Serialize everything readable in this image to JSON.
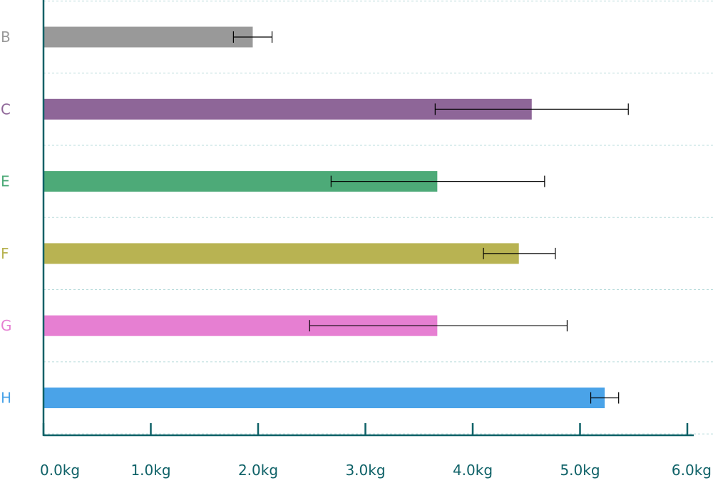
{
  "chart_data": {
    "type": "bar",
    "orientation": "horizontal",
    "categories": [
      "B",
      "C",
      "E",
      "F",
      "G",
      "H"
    ],
    "values": [
      1.95,
      4.55,
      3.67,
      4.43,
      3.67,
      5.23
    ],
    "error_low": [
      1.77,
      3.65,
      2.68,
      4.1,
      2.48,
      5.1
    ],
    "error_high": [
      2.13,
      5.45,
      4.67,
      4.77,
      4.88,
      5.36
    ],
    "colors": [
      "#999999",
      "#8e6698",
      "#4daa78",
      "#b8b352",
      "#e67fd2",
      "#4aa3e8"
    ],
    "xlim": [
      0,
      6
    ],
    "x_ticks": [
      0,
      1,
      2,
      3,
      4,
      5,
      6
    ],
    "x_tick_labels": [
      "0.0kg",
      "1.0kg",
      "2.0kg",
      "3.0kg",
      "4.0kg",
      "5.0kg",
      "6.0kg"
    ],
    "title": "",
    "xlabel": "",
    "ylabel": "",
    "grid": "horizontal dashed",
    "axis_color": "#0e6167",
    "grid_color": "#b9dcdc"
  }
}
